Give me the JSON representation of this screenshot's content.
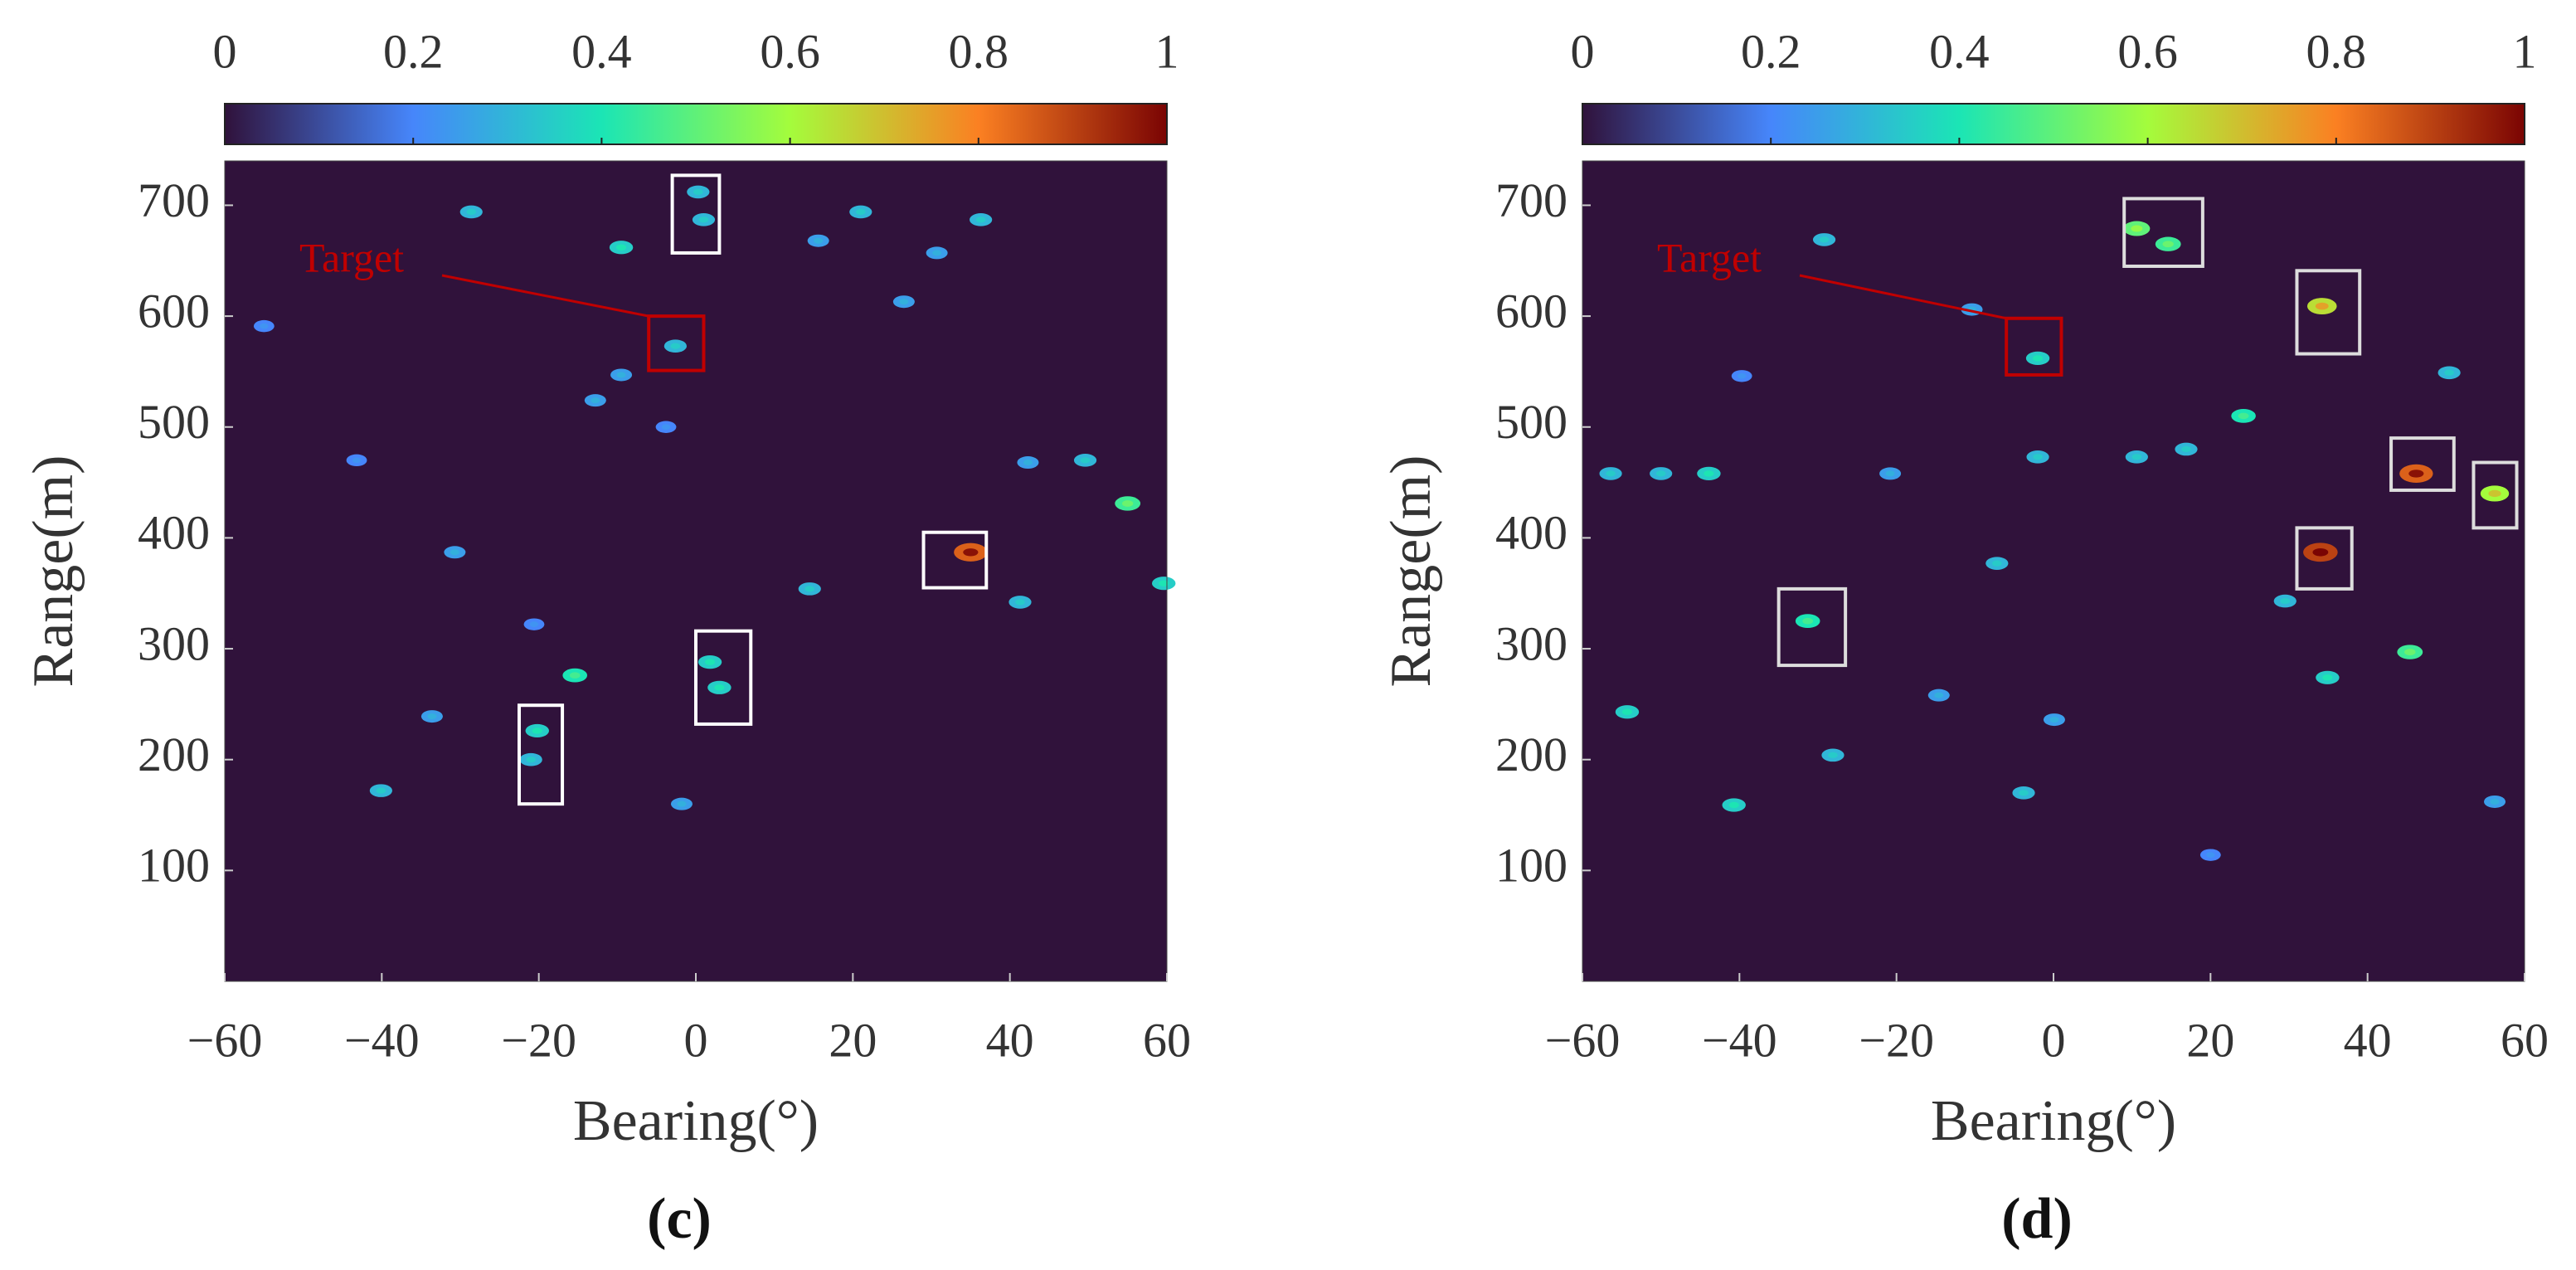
{
  "chart_data": [
    {
      "type": "heatmap",
      "caption": "(c)",
      "x_label": "Bearing(°)",
      "y_label": "Range(m)",
      "xlim": [
        -60,
        60
      ],
      "ylim": [
        0,
        740
      ],
      "xticks": [
        {
          "value": -60,
          "label": "−60"
        },
        {
          "value": -40,
          "label": "−40"
        },
        {
          "value": -20,
          "label": "−20"
        },
        0,
        20,
        40,
        60
      ],
      "yticks": [
        100,
        200,
        300,
        400,
        500,
        600,
        700
      ],
      "clim": [
        0,
        1
      ],
      "cticks": [
        0,
        0.2,
        0.4,
        0.6,
        0.8,
        1
      ],
      "colormap": [
        "#30123b",
        "#4686fb",
        "#1be5b5",
        "#a4fc3c",
        "#fb8022",
        "#7a0403"
      ],
      "x": [
        -28.6,
        -9.5,
        0.3,
        1,
        -2.6,
        21,
        15.6,
        26.5,
        30.7,
        36.3,
        -9.5,
        -12.8,
        -43.2,
        42.3,
        49.6,
        55,
        59.6,
        41.3,
        14.5,
        35,
        -30.7,
        -15.4,
        1.8,
        -20.2,
        -33.6,
        -40.1,
        -1.8,
        -55,
        -3.8,
        -20.6,
        3,
        -21
      ],
      "y": [
        694,
        662,
        712,
        687,
        573,
        694,
        668,
        613,
        657,
        687,
        547,
        524,
        470,
        468,
        470,
        431,
        359,
        342,
        354,
        387,
        387,
        276,
        288,
        226,
        239,
        172,
        160,
        591,
        500,
        322,
        265,
        200
      ],
      "values": [
        0.3,
        0.35,
        0.3,
        0.3,
        0.3,
        0.3,
        0.25,
        0.25,
        0.25,
        0.3,
        0.25,
        0.25,
        0.2,
        0.25,
        0.3,
        0.45,
        0.35,
        0.3,
        0.3,
        0.85,
        0.25,
        0.4,
        0.35,
        0.35,
        0.25,
        0.3,
        0.25,
        0.2,
        0.2,
        0.2,
        0.35,
        0.3
      ],
      "boxes": [
        {
          "x": [
            -3,
            3
          ],
          "y": [
            657,
            727
          ],
          "color": "#ffffff"
        },
        {
          "x": [
            29,
            37
          ],
          "y": [
            355,
            405
          ],
          "color": "#ffffff"
        },
        {
          "x": [
            0,
            7
          ],
          "y": [
            232,
            316
          ],
          "color": "#ffffff"
        },
        {
          "x": [
            -22.5,
            -17
          ],
          "y": [
            160,
            249
          ],
          "color": "#ffffff"
        }
      ],
      "target": {
        "text": "Target",
        "x": [
          -6,
          1
        ],
        "y": [
          551,
          600
        ],
        "color": "#c00000"
      }
    },
    {
      "type": "heatmap",
      "caption": "(d)",
      "x_label": "Bearing(°)",
      "y_label": "Range(m)",
      "xlim": [
        -60,
        60
      ],
      "ylim": [
        0,
        740
      ],
      "xticks": [
        {
          "value": -60,
          "label": "−60"
        },
        {
          "value": -40,
          "label": "−40"
        },
        {
          "value": -20,
          "label": "−20"
        },
        0,
        20,
        40,
        60
      ],
      "yticks": [
        100,
        200,
        300,
        400,
        500,
        600,
        700
      ],
      "clim": [
        0,
        1
      ],
      "cticks": [
        0,
        0.2,
        0.4,
        0.6,
        0.8,
        1
      ],
      "colormap": [
        "#30123b",
        "#4686fb",
        "#1be5b5",
        "#a4fc3c",
        "#fb8022",
        "#7a0403"
      ],
      "x": [
        -29.2,
        10.6,
        14.6,
        34.2,
        -2,
        -10.4,
        -2,
        10.6,
        16.9,
        24.2,
        46.2,
        56.2,
        34,
        29.5,
        34.9,
        45.4,
        -31.3,
        -7.2,
        -43.9,
        -56.4,
        -14.6,
        -54.3,
        -40.7,
        -3.8,
        0.1,
        -28.1,
        56.2,
        20,
        -39.7,
        50.4,
        -20.8,
        -50
      ],
      "y": [
        669,
        679,
        665,
        609,
        562,
        606,
        473,
        473,
        480,
        510,
        458,
        440,
        387,
        343,
        274,
        297,
        325,
        377,
        458,
        458,
        258,
        243,
        159,
        170,
        236,
        204,
        162,
        114,
        546,
        549,
        458,
        458
      ],
      "values": [
        0.3,
        0.5,
        0.45,
        0.65,
        0.35,
        0.25,
        0.3,
        0.3,
        0.3,
        0.4,
        0.85,
        0.6,
        0.9,
        0.3,
        0.35,
        0.45,
        0.4,
        0.3,
        0.35,
        0.3,
        0.25,
        0.35,
        0.35,
        0.3,
        0.25,
        0.3,
        0.25,
        0.2,
        0.2,
        0.3,
        0.25,
        0.3
      ],
      "boxes": [
        {
          "x": [
            9,
            19
          ],
          "y": [
            645,
            706
          ],
          "color": "#dddddd"
        },
        {
          "x": [
            31,
            39
          ],
          "y": [
            566,
            641
          ],
          "color": "#dddddd"
        },
        {
          "x": [
            43,
            51
          ],
          "y": [
            443,
            490
          ],
          "color": "#dddddd"
        },
        {
          "x": [
            53.5,
            59
          ],
          "y": [
            409,
            468
          ],
          "color": "#dddddd"
        },
        {
          "x": [
            31,
            38
          ],
          "y": [
            354,
            409
          ],
          "color": "#dddddd"
        },
        {
          "x": [
            -35,
            -26.5
          ],
          "y": [
            285,
            354
          ],
          "color": "#dddddd"
        }
      ],
      "target": {
        "text": "Target",
        "x": [
          -6,
          1
        ],
        "y": [
          547,
          598
        ],
        "color": "#c00000"
      }
    }
  ]
}
